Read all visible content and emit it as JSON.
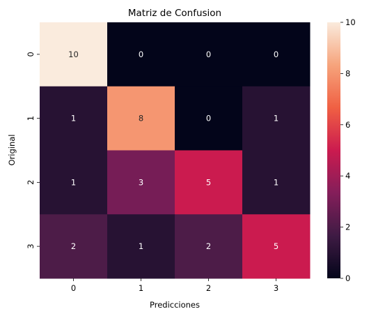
{
  "chart_data": {
    "type": "heatmap",
    "title": "Matriz de Confusion",
    "xlabel": "Predicciones",
    "ylabel": "Original",
    "x_categories": [
      "0",
      "1",
      "2",
      "3"
    ],
    "y_categories": [
      "0",
      "1",
      "2",
      "3"
    ],
    "values": [
      [
        10,
        0,
        0,
        0
      ],
      [
        1,
        8,
        0,
        1
      ],
      [
        1,
        3,
        5,
        1
      ],
      [
        2,
        1,
        2,
        5
      ]
    ],
    "colorbar": {
      "range": [
        0,
        10
      ],
      "ticks": [
        "0",
        "2",
        "4",
        "6",
        "8",
        "10"
      ]
    },
    "colormap": "rocket",
    "colormap_stops": [
      "#03051a",
      "#3f1b44",
      "#841e5a",
      "#cb1b4f",
      "#f06043",
      "#f6a47c",
      "#faebdd"
    ]
  }
}
